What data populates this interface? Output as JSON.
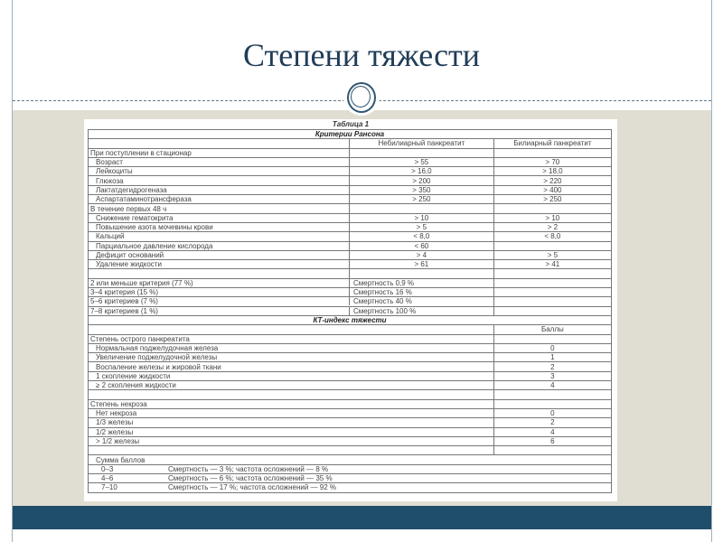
{
  "slide": {
    "title": "Степени тяжести"
  },
  "colors": {
    "title": "#1f3d58",
    "band": "#e0ddd2",
    "bottom_bar": "#1e4e6a"
  },
  "table": {
    "caption": "Таблица 1",
    "rows": [
      {
        "t": "h",
        "cells": [
          "Критерии Рансона"
        ]
      },
      {
        "t": "r3",
        "cells": [
          "",
          "Небилиарный панкреатит",
          "Билиарный панкреатит"
        ]
      },
      {
        "t": "sec3",
        "cells": [
          "При поступлении в стационар",
          "",
          ""
        ]
      },
      {
        "t": "i3",
        "cells": [
          "Возраст",
          "> 55",
          "> 70"
        ]
      },
      {
        "t": "i3",
        "cells": [
          "Лейкоциты",
          "> 16,0",
          "> 18,0"
        ]
      },
      {
        "t": "i3",
        "cells": [
          "Глюкоза",
          "> 200",
          "> 220"
        ]
      },
      {
        "t": "i3",
        "cells": [
          "Лактатдегидрогеназа",
          "> 350",
          "> 400"
        ]
      },
      {
        "t": "i3",
        "cells": [
          "Аспартатаминотрансфераза",
          "> 250",
          "> 250"
        ]
      },
      {
        "t": "sec3",
        "cells": [
          "В течение первых 48 ч",
          "",
          ""
        ]
      },
      {
        "t": "i3",
        "cells": [
          "Снижение гематокрита",
          "> 10",
          "> 10"
        ]
      },
      {
        "t": "i3",
        "cells": [
          "Повышение азота мочевины крови",
          "> 5",
          "> 2"
        ]
      },
      {
        "t": "i3",
        "cells": [
          "Кальций",
          "< 8,0",
          "< 8,0"
        ]
      },
      {
        "t": "i3",
        "cells": [
          "Парциальное давление кислорода",
          "< 60",
          ""
        ]
      },
      {
        "t": "i3",
        "cells": [
          "Дефицит оснований",
          "> 4",
          "> 5"
        ]
      },
      {
        "t": "i3",
        "cells": [
          "Удаление жидкости",
          "> 61",
          "> 41"
        ]
      },
      {
        "t": "sec3",
        "cells": [
          "",
          "",
          ""
        ]
      },
      {
        "t": "m",
        "cells": [
          "2 или меньше критерия (77 %)",
          "Смертность 0,9 %",
          ""
        ]
      },
      {
        "t": "m",
        "cells": [
          "3–4 критерия (15 %)",
          "Смертность 16 %",
          ""
        ]
      },
      {
        "t": "m",
        "cells": [
          "5–6 критериев (7 %)",
          "Смертность 40 %",
          ""
        ]
      },
      {
        "t": "m",
        "cells": [
          "7–8 критериев (1 %)",
          "Смертность 100 %",
          ""
        ]
      },
      {
        "t": "h",
        "cells": [
          "КТ-индекс тяжести"
        ]
      },
      {
        "t": "ct",
        "cells": [
          "",
          "Баллы"
        ]
      },
      {
        "t": "ctsec",
        "cells": [
          "Степень острого панкреатита",
          ""
        ]
      },
      {
        "t": "cti",
        "cells": [
          "Нормальная поджелудочная железа",
          "0"
        ]
      },
      {
        "t": "cti",
        "cells": [
          "Увеличение поджелудочной железы",
          "1"
        ]
      },
      {
        "t": "cti",
        "cells": [
          "Воспаление железы и жировой ткани",
          "2"
        ]
      },
      {
        "t": "cti",
        "cells": [
          "1 скопление жидкости",
          "3"
        ]
      },
      {
        "t": "cti",
        "cells": [
          "≥ 2 скопления жидкости",
          "4"
        ]
      },
      {
        "t": "ctsec",
        "cells": [
          "",
          ""
        ]
      },
      {
        "t": "ctsec",
        "cells": [
          "Степень некроза",
          ""
        ]
      },
      {
        "t": "cti",
        "cells": [
          "Нет некроза",
          "0"
        ]
      },
      {
        "t": "cti",
        "cells": [
          "1/3 железы",
          "2"
        ]
      },
      {
        "t": "cti",
        "cells": [
          "1/2 железы",
          "4"
        ]
      },
      {
        "t": "cti",
        "cells": [
          "> 1/2 железы",
          "6"
        ]
      },
      {
        "t": "ctsec",
        "cells": [
          "",
          ""
        ]
      },
      {
        "t": "sumh",
        "cells": [
          "Сумма баллов"
        ]
      },
      {
        "t": "sum",
        "cells": [
          "0–3",
          "Смертность — 3 %; частота осложнений — 8 %"
        ]
      },
      {
        "t": "sum",
        "cells": [
          "4–6",
          "Смертность — 6 %; частота осложнений — 35 %"
        ]
      },
      {
        "t": "sum",
        "cells": [
          "7–10",
          "Смертность — 17 %; частота осложнений — 92 %"
        ]
      }
    ]
  }
}
